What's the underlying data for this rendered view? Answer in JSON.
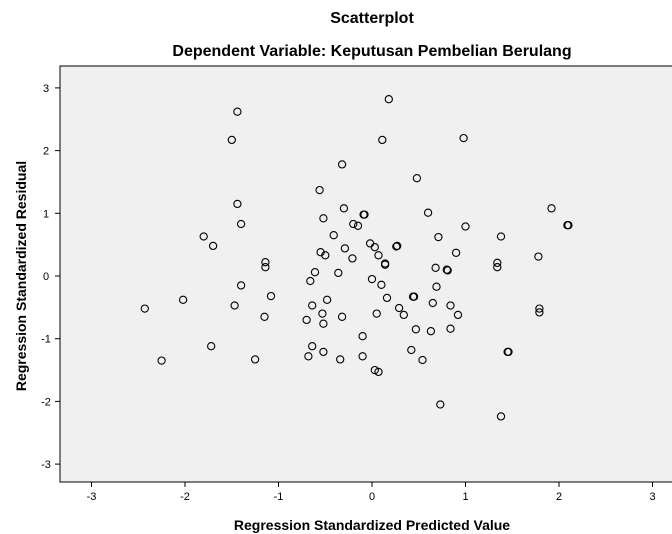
{
  "chart_data": {
    "type": "scatter",
    "title": "Scatterplot",
    "subtitle": "Dependent Variable: Keputusan Pembelian Berulang",
    "xlabel": "Regression Standardized Predicted Value",
    "ylabel": "Regression Standardized Residual",
    "xlim": [
      -3.3,
      3.3
    ],
    "ylim": [
      -3.3,
      3.3
    ],
    "xticks": [
      "-3",
      "-2",
      "-1",
      "0",
      "1",
      "2",
      "3"
    ],
    "yticks": [
      "-3",
      "-2",
      "-1",
      "0",
      "1",
      "2",
      "3"
    ],
    "grid": false,
    "legend": "none",
    "colors": {
      "plot_background": "#f0f0f0",
      "marker": "#000000"
    },
    "points": [
      {
        "x": -2.43,
        "y": -0.52
      },
      {
        "x": -2.25,
        "y": -1.35
      },
      {
        "x": -2.02,
        "y": -0.38
      },
      {
        "x": -1.8,
        "y": 0.63
      },
      {
        "x": -1.7,
        "y": 0.48
      },
      {
        "x": -1.72,
        "y": -1.12
      },
      {
        "x": -1.5,
        "y": 2.17
      },
      {
        "x": -1.44,
        "y": 2.62
      },
      {
        "x": -1.44,
        "y": 1.15
      },
      {
        "x": -1.4,
        "y": 0.83
      },
      {
        "x": -1.4,
        "y": -0.15
      },
      {
        "x": -1.47,
        "y": -0.47
      },
      {
        "x": -1.25,
        "y": -1.33
      },
      {
        "x": -1.14,
        "y": 0.22
      },
      {
        "x": -1.14,
        "y": 0.14
      },
      {
        "x": -1.15,
        "y": -0.65
      },
      {
        "x": -1.08,
        "y": -0.32
      },
      {
        "x": -0.7,
        "y": -0.7
      },
      {
        "x": -0.68,
        "y": -1.28
      },
      {
        "x": -0.64,
        "y": -1.12
      },
      {
        "x": -0.61,
        "y": 0.06
      },
      {
        "x": -0.66,
        "y": -0.08
      },
      {
        "x": -0.64,
        "y": -0.47
      },
      {
        "x": -0.56,
        "y": 1.37
      },
      {
        "x": -0.55,
        "y": 0.38
      },
      {
        "x": -0.5,
        "y": 0.33
      },
      {
        "x": -0.52,
        "y": 0.92
      },
      {
        "x": -0.48,
        "y": -0.38
      },
      {
        "x": -0.53,
        "y": -0.6
      },
      {
        "x": -0.52,
        "y": -0.76
      },
      {
        "x": -0.52,
        "y": -1.21
      },
      {
        "x": -0.41,
        "y": 0.65
      },
      {
        "x": -0.36,
        "y": 0.05
      },
      {
        "x": -0.32,
        "y": 1.78
      },
      {
        "x": -0.3,
        "y": 1.08
      },
      {
        "x": -0.29,
        "y": 0.44
      },
      {
        "x": -0.32,
        "y": -0.65
      },
      {
        "x": -0.34,
        "y": -1.33
      },
      {
        "x": -0.21,
        "y": 0.28
      },
      {
        "x": -0.2,
        "y": 0.83
      },
      {
        "x": -0.15,
        "y": 0.8
      },
      {
        "x": -0.09,
        "y": 0.98
      },
      {
        "x": -0.08,
        "y": 0.98
      },
      {
        "x": -0.1,
        "y": -0.96
      },
      {
        "x": -0.1,
        "y": -1.28
      },
      {
        "x": -0.02,
        "y": 0.52
      },
      {
        "x": 0.03,
        "y": 0.46
      },
      {
        "x": 0.0,
        "y": -0.05
      },
      {
        "x": 0.07,
        "y": 0.33
      },
      {
        "x": 0.1,
        "y": -0.14
      },
      {
        "x": 0.05,
        "y": -0.6
      },
      {
        "x": 0.03,
        "y": -1.5
      },
      {
        "x": 0.07,
        "y": -1.53
      },
      {
        "x": 0.11,
        "y": 2.17
      },
      {
        "x": 0.14,
        "y": 0.2
      },
      {
        "x": 0.14,
        "y": 0.18
      },
      {
        "x": 0.16,
        "y": -0.35
      },
      {
        "x": 0.18,
        "y": 2.82
      },
      {
        "x": 0.26,
        "y": 0.47
      },
      {
        "x": 0.27,
        "y": 0.48
      },
      {
        "x": 0.29,
        "y": -0.51
      },
      {
        "x": 0.34,
        "y": -0.62
      },
      {
        "x": 0.42,
        "y": -1.18
      },
      {
        "x": 0.44,
        "y": -0.33
      },
      {
        "x": 0.45,
        "y": -0.33
      },
      {
        "x": 0.47,
        "y": -0.85
      },
      {
        "x": 0.48,
        "y": 1.56
      },
      {
        "x": 0.54,
        "y": -1.34
      },
      {
        "x": 0.6,
        "y": 1.01
      },
      {
        "x": 0.63,
        "y": -0.88
      },
      {
        "x": 0.65,
        "y": -0.43
      },
      {
        "x": 0.68,
        "y": 0.13
      },
      {
        "x": 0.69,
        "y": -0.17
      },
      {
        "x": 0.71,
        "y": 0.62
      },
      {
        "x": 0.73,
        "y": -2.05
      },
      {
        "x": 0.8,
        "y": 0.1
      },
      {
        "x": 0.81,
        "y": 0.09
      },
      {
        "x": 0.84,
        "y": -0.47
      },
      {
        "x": 0.84,
        "y": -0.84
      },
      {
        "x": 0.9,
        "y": 0.37
      },
      {
        "x": 0.92,
        "y": -0.62
      },
      {
        "x": 0.98,
        "y": 2.2
      },
      {
        "x": 1.0,
        "y": 0.79
      },
      {
        "x": 1.34,
        "y": 0.21
      },
      {
        "x": 1.34,
        "y": 0.14
      },
      {
        "x": 1.38,
        "y": 0.63
      },
      {
        "x": 1.38,
        "y": -2.24
      },
      {
        "x": 1.45,
        "y": -1.21
      },
      {
        "x": 1.46,
        "y": -1.21
      },
      {
        "x": 1.78,
        "y": 0.31
      },
      {
        "x": 1.79,
        "y": -0.52
      },
      {
        "x": 1.79,
        "y": -0.58
      },
      {
        "x": 1.92,
        "y": 1.08
      },
      {
        "x": 2.09,
        "y": 0.81
      },
      {
        "x": 2.1,
        "y": 0.81
      }
    ]
  }
}
